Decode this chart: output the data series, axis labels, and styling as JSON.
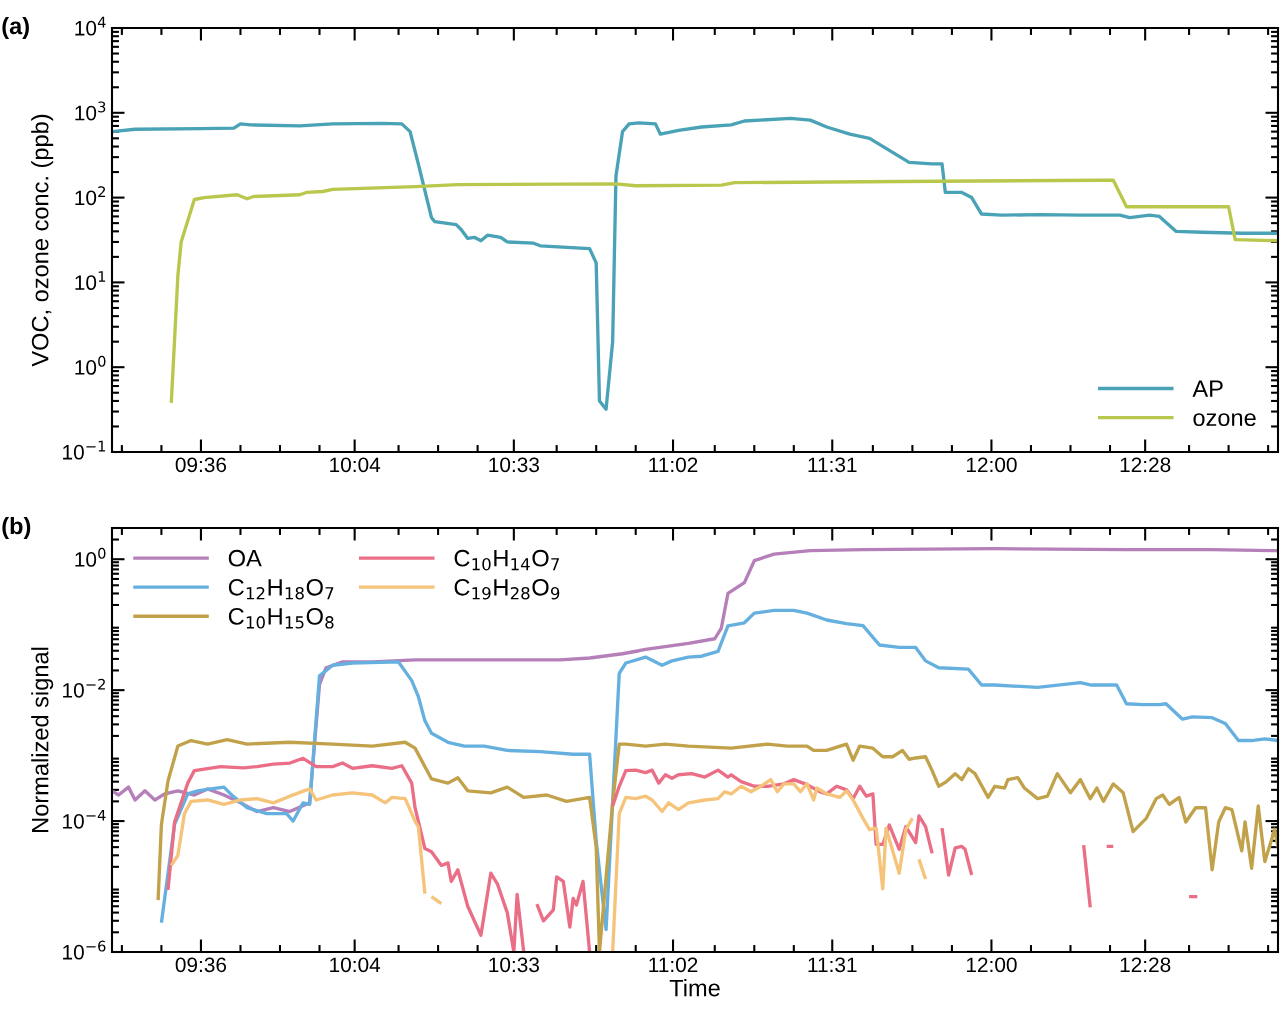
{
  "chart_data": [
    {
      "type": "line",
      "ylabel": "VOC, ozone conc. (ppb)",
      "annotations": [
        "(a)"
      ],
      "log": true,
      "grid": false,
      "legend": "bottom right",
      "xlim": [
        9.33,
        12.87
      ],
      "ylim": [
        0.1,
        10000
      ],
      "xticks": [
        {
          "value": 9.36,
          "label": null
        },
        {
          "value": 9.48,
          "label": null
        },
        {
          "value": 9.6,
          "label": "09:36"
        },
        {
          "value": 9.72,
          "label": null
        },
        {
          "value": 9.84,
          "label": null
        },
        {
          "value": 9.96,
          "label": null
        },
        {
          "value": 10.0667,
          "label": "10:04"
        },
        {
          "value": 10.2,
          "label": null
        },
        {
          "value": 10.32,
          "label": null
        },
        {
          "value": 10.44,
          "label": null
        },
        {
          "value": 10.55,
          "label": "10:33"
        },
        {
          "value": 10.68,
          "label": null
        },
        {
          "value": 10.8,
          "label": null
        },
        {
          "value": 10.92,
          "label": null
        },
        {
          "value": 11.0333,
          "label": "11:02"
        },
        {
          "value": 11.16,
          "label": null
        },
        {
          "value": 11.28,
          "label": null
        },
        {
          "value": 11.4,
          "label": null
        },
        {
          "value": 11.5167,
          "label": "11:31"
        },
        {
          "value": 11.64,
          "label": null
        },
        {
          "value": 11.76,
          "label": null
        },
        {
          "value": 11.88,
          "label": null
        },
        {
          "value": 12.0,
          "label": "12:00"
        },
        {
          "value": 12.12,
          "label": null
        },
        {
          "value": 12.24,
          "label": null
        },
        {
          "value": 12.36,
          "label": null
        },
        {
          "value": 12.4667,
          "label": "12:28"
        },
        {
          "value": 12.6,
          "label": null
        },
        {
          "value": 12.72,
          "label": null
        },
        {
          "value": 12.84,
          "label": null
        }
      ],
      "yticks": [
        {
          "value": 0.1,
          "label": "10$^{−1}$"
        },
        {
          "value": 1,
          "label": "10$^{0}$"
        },
        {
          "value": 10,
          "label": "10$^{1}$"
        },
        {
          "value": 100,
          "label": "10$^{2}$"
        },
        {
          "value": 1000,
          "label": "10$^{3}$"
        },
        {
          "value": 10000,
          "label": "10$^{4}$"
        }
      ],
      "series": [
        {
          "name": "AP",
          "color": "#4aa2b6",
          "x": [
            9.33,
            9.4,
            9.6,
            9.7,
            9.72,
            9.75,
            9.9,
            10.0,
            10.15,
            10.21,
            10.235,
            10.26,
            10.3,
            10.31,
            10.375,
            10.39,
            10.41,
            10.43,
            10.45,
            10.47,
            10.51,
            10.53,
            10.61,
            10.63,
            10.78,
            10.8,
            10.81,
            10.83,
            10.85,
            10.86,
            10.88,
            10.9,
            10.93,
            10.98,
            10.995,
            11.05,
            11.12,
            11.21,
            11.25,
            11.39,
            11.45,
            11.5,
            11.57,
            11.63,
            11.69,
            11.75,
            11.82,
            11.85,
            11.86,
            11.91,
            11.94,
            11.97,
            12.03,
            12.15,
            12.27,
            12.39,
            12.42,
            12.48,
            12.51,
            12.56,
            12.64,
            12.76,
            12.87
          ],
          "values": [
            600,
            640,
            650,
            660,
            740,
            720,
            700,
            740,
            750,
            740,
            600,
            250,
            58,
            52,
            48,
            42,
            33,
            34,
            31,
            36,
            34,
            30,
            29,
            27,
            25,
            17,
            0.4,
            0.32,
            2,
            180,
            600,
            740,
            760,
            740,
            560,
            620,
            680,
            720,
            800,
            860,
            820,
            680,
            560,
            500,
            360,
            260,
            250,
            250,
            115,
            115,
            100,
            64,
            62,
            63,
            62,
            62,
            58,
            62,
            60,
            40,
            39,
            38,
            38
          ]
        },
        {
          "name": "ozone",
          "color": "#b9c74c",
          "x": [
            9.51,
            9.53,
            9.54,
            9.58,
            9.61,
            9.71,
            9.74,
            9.76,
            9.9,
            9.92,
            9.97,
            10.0,
            10.25,
            10.38,
            10.86,
            10.92,
            11.18,
            11.22,
            11.72,
            12.33,
            12.37,
            12.41,
            12.72,
            12.74,
            12.87
          ],
          "values": [
            0.38,
            12,
            30,
            95,
            100,
            108,
            97,
            103,
            108,
            115,
            118,
            125,
            135,
            142,
            145,
            138,
            140,
            150,
            155,
            160,
            160,
            78,
            78,
            32,
            31
          ]
        }
      ]
    },
    {
      "type": "line",
      "xlabel": "Time",
      "ylabel": "Normalized signal",
      "annotations": [
        "(b)"
      ],
      "log": true,
      "grid": false,
      "legend": "top left",
      "xlim": [
        9.33,
        12.87
      ],
      "ylim": [
        1e-06,
        3
      ],
      "xticks": [
        {
          "value": 9.36,
          "label": null
        },
        {
          "value": 9.48,
          "label": null
        },
        {
          "value": 9.6,
          "label": "09:36"
        },
        {
          "value": 9.72,
          "label": null
        },
        {
          "value": 9.84,
          "label": null
        },
        {
          "value": 9.96,
          "label": null
        },
        {
          "value": 10.0667,
          "label": "10:04"
        },
        {
          "value": 10.2,
          "label": null
        },
        {
          "value": 10.32,
          "label": null
        },
        {
          "value": 10.44,
          "label": null
        },
        {
          "value": 10.55,
          "label": "10:33"
        },
        {
          "value": 10.68,
          "label": null
        },
        {
          "value": 10.8,
          "label": null
        },
        {
          "value": 10.92,
          "label": null
        },
        {
          "value": 11.0333,
          "label": "11:02"
        },
        {
          "value": 11.16,
          "label": null
        },
        {
          "value": 11.28,
          "label": null
        },
        {
          "value": 11.4,
          "label": null
        },
        {
          "value": 11.5167,
          "label": "11:31"
        },
        {
          "value": 11.64,
          "label": null
        },
        {
          "value": 11.76,
          "label": null
        },
        {
          "value": 11.88,
          "label": null
        },
        {
          "value": 12.0,
          "label": "12:00"
        },
        {
          "value": 12.12,
          "label": null
        },
        {
          "value": 12.24,
          "label": null
        },
        {
          "value": 12.36,
          "label": null
        },
        {
          "value": 12.4667,
          "label": "12:28"
        },
        {
          "value": 12.6,
          "label": null
        },
        {
          "value": 12.72,
          "label": null
        },
        {
          "value": 12.84,
          "label": null
        }
      ],
      "yticks": [
        {
          "value": 1e-06,
          "label": "10$^{−6}$"
        },
        {
          "value": 0.0001,
          "label": "10$^{−4}$"
        },
        {
          "value": 0.01,
          "label": "10$^{−2}$"
        },
        {
          "value": 1,
          "label": "10$^{0}$"
        }
      ],
      "series": [
        {
          "name": "OA",
          "color": "#b57fba",
          "x": [
            9.33,
            9.35,
            9.38,
            9.4,
            9.43,
            9.46,
            9.49,
            9.53,
            9.58,
            9.62,
            9.67,
            9.72,
            9.77,
            9.82,
            9.87,
            9.93,
            9.96,
            9.98,
            10.03,
            10.12,
            10.25,
            10.5,
            10.69,
            10.78,
            10.88,
            10.93,
            10.95,
            11.08,
            11.16,
            11.18,
            11.2,
            11.25,
            11.28,
            11.34,
            11.45,
            11.61,
            12.01,
            12.41,
            12.67,
            12.87
          ],
          "values": [
            0.00029,
            0.00025,
            0.00033,
            0.00021,
            0.00029,
            0.00021,
            0.00026,
            0.00029,
            0.00025,
            0.00031,
            0.00025,
            0.00019,
            0.00014,
            0.00016,
            0.00014,
            0.00019,
            0.0123,
            0.022,
            0.027,
            0.027,
            0.029,
            0.029,
            0.029,
            0.031,
            0.036,
            0.04,
            0.042,
            0.052,
            0.061,
            0.089,
            0.3,
            0.44,
            0.95,
            1.2,
            1.35,
            1.4,
            1.45,
            1.4,
            1.4,
            1.35
          ]
        },
        {
          "name": "C$_{12}$H$_{18}$O$_{7}$",
          "color": "#65b0df",
          "x": [
            9.48,
            9.52,
            9.56,
            9.59,
            9.63,
            9.67,
            9.69,
            9.74,
            9.8,
            9.86,
            9.88,
            9.91,
            9.93,
            9.96,
            10.0,
            10.06,
            10.2,
            10.24,
            10.26,
            10.28,
            10.3,
            10.35,
            10.4,
            10.46,
            10.53,
            10.63,
            10.73,
            10.78,
            10.8,
            10.83,
            10.87,
            10.89,
            10.95,
            11.0,
            11.03,
            11.08,
            11.12,
            11.17,
            11.2,
            11.25,
            11.28,
            11.34,
            11.4,
            11.44,
            11.5,
            11.56,
            11.61,
            11.66,
            11.72,
            11.77,
            11.8,
            11.84,
            11.93,
            11.97,
            12.01,
            12.14,
            12.27,
            12.3,
            12.38,
            12.41,
            12.46,
            12.51,
            12.53,
            12.58,
            12.61,
            12.67,
            12.71,
            12.75,
            12.79,
            12.83,
            12.87
          ],
          "values": [
            2.8e-06,
            8.9e-05,
            0.00026,
            0.00029,
            0.00031,
            0.00033,
            0.00026,
            0.00016,
            0.00013,
            0.00013,
            0.0001,
            0.00019,
            0.00018,
            0.0165,
            0.024,
            0.026,
            0.027,
            0.014,
            0.008,
            0.0034,
            0.0022,
            0.0016,
            0.0014,
            0.0014,
            0.0012,
            0.00115,
            0.00105,
            0.00105,
            5e-05,
            2.2e-06,
            0.018,
            0.026,
            0.032,
            0.024,
            0.028,
            0.032,
            0.033,
            0.039,
            0.096,
            0.107,
            0.15,
            0.165,
            0.165,
            0.15,
            0.118,
            0.104,
            0.097,
            0.049,
            0.045,
            0.045,
            0.028,
            0.022,
            0.021,
            0.012,
            0.012,
            0.011,
            0.013,
            0.012,
            0.012,
            0.0062,
            0.006,
            0.006,
            0.0062,
            0.0036,
            0.0039,
            0.0038,
            0.0031,
            0.0017,
            0.0017,
            0.0018,
            0.0017
          ]
        },
        {
          "name": "C$_{10}$H$_{15}$O$_{8}$",
          "color": "#c1a24a",
          "x": [
            9.47,
            9.48,
            9.5,
            9.53,
            9.57,
            9.62,
            9.68,
            9.74,
            9.87,
            10.0,
            10.12,
            10.22,
            10.25,
            10.3,
            10.35,
            10.38,
            10.41,
            10.48,
            10.53,
            10.58,
            10.65,
            10.71,
            10.78,
            10.8,
            10.81,
            10.85,
            10.87,
            10.89,
            10.95,
            11.01,
            11.08,
            11.21,
            11.32,
            11.38,
            11.44,
            11.46,
            11.5,
            11.56,
            11.58,
            11.6,
            11.64,
            11.67,
            11.7,
            11.73,
            11.75,
            11.77,
            11.8,
            11.82,
            11.84,
            11.86,
            11.89,
            11.91,
            11.93,
            11.95,
            11.99,
            12.01,
            12.04,
            12.05,
            12.08,
            12.1,
            12.14,
            12.17,
            12.2,
            12.24,
            12.27,
            12.3,
            12.32,
            12.34,
            12.37,
            12.4,
            12.43,
            12.47,
            12.5,
            12.52,
            12.54,
            12.57,
            12.59,
            12.62,
            12.65,
            12.67,
            12.69,
            12.71,
            12.73,
            12.76,
            12.77,
            12.79,
            12.81,
            12.83,
            12.86,
            12.87
          ],
          "values": [
            6.2e-06,
            8.9e-05,
            0.00041,
            0.0014,
            0.0017,
            0.0015,
            0.00175,
            0.0015,
            0.0016,
            0.0015,
            0.0014,
            0.0016,
            0.0013,
            0.00044,
            0.00038,
            0.00046,
            0.00029,
            0.00027,
            0.00033,
            0.00023,
            0.00025,
            0.0002,
            0.00023,
            4e-05,
            1e-06,
            0.00019,
            0.0015,
            0.0015,
            0.0014,
            0.0015,
            0.0014,
            0.0013,
            0.0015,
            0.0014,
            0.0014,
            0.0012,
            0.0012,
            0.0015,
            0.00085,
            0.0014,
            0.0013,
            0.00096,
            0.00096,
            0.0012,
            0.00088,
            0.00092,
            0.00096,
            0.00059,
            0.00034,
            0.00039,
            0.00053,
            0.00043,
            0.00063,
            0.00053,
            0.00023,
            0.00034,
            0.00032,
            0.00043,
            0.00046,
            0.00032,
            0.00022,
            0.00024,
            0.00053,
            0.00027,
            0.00043,
            0.00022,
            0.00032,
            0.0002,
            0.00037,
            0.00027,
            6.9e-05,
            0.00011,
            0.00022,
            0.00025,
            0.00018,
            0.00023,
            9.7e-05,
            0.00016,
            0.00016,
            1.8e-05,
            9.7e-05,
            0.00016,
            0.00015,
            3.5e-05,
            9.7e-05,
            1.9e-05,
            0.00017,
            2.4e-05,
            7.5e-05,
            4e-05
          ]
        },
        {
          "name": "C$_{10}$H$_{14}$O$_{7}$",
          "color": "#ea6e86",
          "x": [
            9.5,
            9.52,
            9.56,
            9.58,
            9.66,
            9.7,
            9.73,
            9.77,
            9.82,
            9.87,
            9.91,
            9.95,
            10.0,
            10.03,
            10.06,
            10.12,
            10.18,
            10.21,
            10.24,
            10.25,
            10.28,
            10.3,
            10.33,
            10.35,
            10.36,
            10.38,
            10.41,
            10.45,
            10.48,
            10.5,
            10.53,
            10.55,
            10.56,
            10.58,
            10.59,
            10.62,
            10.64,
            10.67,
            10.68,
            10.7,
            10.72,
            10.73,
            10.74,
            10.76,
            10.78,
            10.8,
            10.85,
            10.87,
            10.89,
            10.92,
            10.95,
            10.97,
            10.99,
            11.01,
            11.03,
            11.05,
            11.09,
            11.13,
            11.17,
            11.2,
            11.21,
            11.24,
            11.28,
            11.32,
            11.37,
            11.4,
            11.44,
            11.48,
            11.5,
            11.53,
            11.56,
            11.58,
            11.6,
            11.62,
            11.64,
            11.65,
            11.67,
            11.69,
            11.72,
            11.74,
            11.77,
            11.78,
            11.8,
            11.82,
            11.835,
            11.85,
            11.87,
            11.89,
            11.91,
            11.92,
            11.94,
            12.0,
            12.28,
            12.3,
            12.32,
            12.35,
            12.37,
            12.5,
            12.6,
            12.625
          ],
          "values": [
            8.9e-06,
            9.7e-05,
            0.00038,
            0.00059,
            0.00068,
            0.00066,
            0.00065,
            0.00068,
            0.00074,
            0.00077,
            0.00091,
            0.00068,
            0.00068,
            0.00077,
            0.00064,
            0.0007,
            0.00064,
            0.0007,
            0.00038,
            0.00016,
            3.8e-05,
            3.4e-05,
            2.1e-05,
            2.3e-05,
            1.2e-05,
            1.8e-05,
            5e-06,
            1.8e-06,
            1.6e-05,
            1.1e-05,
            4e-06,
            1e-06,
            7.6e-06,
            1e-06,
            null,
            5.4e-06,
            3e-06,
            4.4e-06,
            1.4e-05,
            1.2e-05,
            2.4e-06,
            6.6e-06,
            5.2e-06,
            1.2e-05,
            1e-06,
            null,
            0.00017,
            0.00034,
            0.00059,
            0.0006,
            0.00055,
            0.0006,
            0.00038,
            0.00051,
            0.00045,
            0.00051,
            0.00053,
            0.00047,
            0.0006,
            0.00047,
            0.00051,
            0.0004,
            0.00034,
            0.00034,
            0.00037,
            0.00043,
            0.00036,
            0.00028,
            0.00026,
            0.00034,
            0.0003,
            0.00022,
            0.00034,
            0.00024,
            0.00026,
            4.4e-05,
            4.4e-05,
            8.7e-05,
            3.7e-05,
            8.2e-05,
            4.7e-05,
            0.00012,
            8.2e-05,
            3.2e-05,
            null,
            7.8e-05,
            1.5e-05,
            3.9e-05,
            4.1e-05,
            3.7e-05,
            1.5e-05,
            null,
            4.3e-05,
            4.8e-06,
            null,
            4.1e-05,
            4.1e-05,
            null,
            7e-06,
            7e-06
          ]
        },
        {
          "name": "C$_{19}$H$_{28}$O$_{9}$",
          "color": "#f5c47a",
          "x": [
            9.51,
            9.53,
            9.55,
            9.57,
            9.62,
            9.67,
            9.72,
            9.77,
            9.82,
            9.87,
            9.93,
            9.95,
            10.0,
            10.06,
            10.12,
            10.16,
            10.18,
            10.22,
            10.25,
            10.26,
            10.28,
            10.29,
            10.3,
            10.33,
            10.5,
            10.85,
            10.87,
            10.89,
            10.92,
            10.95,
            10.97,
            11.0,
            11.02,
            11.05,
            11.08,
            11.13,
            11.17,
            11.19,
            11.21,
            11.24,
            11.27,
            11.3,
            11.33,
            11.35,
            11.37,
            11.4,
            11.42,
            11.44,
            11.46,
            11.47,
            11.5,
            11.54,
            11.56,
            11.58,
            11.61,
            11.63,
            11.65,
            11.67,
            11.68,
            11.72,
            11.74,
            11.76,
            11.77,
            11.78,
            11.8
          ],
          "values": [
            2.1e-05,
            3e-05,
            0.00013,
            0.0002,
            0.00021,
            0.00018,
            0.00021,
            0.00022,
            0.00019,
            0.00024,
            0.00031,
            0.00021,
            0.00025,
            0.00027,
            0.00025,
            0.00019,
            0.00023,
            0.00022,
            0.0001,
            8.2e-05,
            7.8e-06,
            null,
            7e-06,
            5.5e-06,
            null,
            1e-06,
            0.00013,
            0.00023,
            0.00022,
            0.00024,
            0.00021,
            0.00014,
            0.00019,
            0.00015,
            0.00019,
            0.00021,
            0.00022,
            0.00028,
            0.00026,
            0.00034,
            0.00028,
            0.00034,
            0.00043,
            0.00028,
            0.00037,
            0.00037,
            0.00028,
            0.00037,
            0.00021,
            0.00032,
            0.00026,
            0.00023,
            0.00029,
            0.00021,
            0.00011,
            7.4e-05,
            7.8e-05,
            9.2e-06,
            7.8e-05,
            1.6e-05,
            7.4e-05,
            0.00011,
            null,
            2.6e-05,
            1.3e-05
          ]
        }
      ]
    }
  ]
}
